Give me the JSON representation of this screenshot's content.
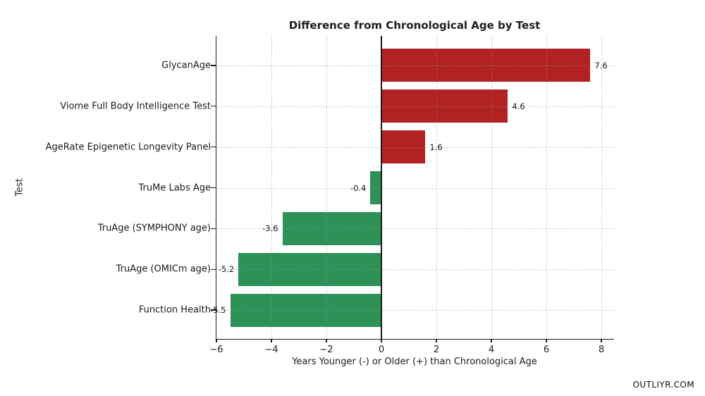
{
  "chart_data": {
    "type": "bar",
    "orientation": "horizontal",
    "title": "Difference from Chronological Age by Test",
    "xlabel": "Years Younger (-) or Older (+) than Chronological Age",
    "ylabel": "Test",
    "categories": [
      "GlycanAge",
      "Viome Full Body Intelligence Test",
      "AgeRate Epigenetic Longevity Panel",
      "TruMe Labs Age",
      "TruAge (SYMPHONY age)",
      "TruAge (OMICm age)",
      "Function Health"
    ],
    "values": [
      7.6,
      4.6,
      1.6,
      -0.4,
      -3.6,
      -5.2,
      -5.5
    ],
    "value_labels": [
      "7.6",
      "4.6",
      "1.6",
      "-0.4",
      "-3.6",
      "-5.2",
      "-5.5"
    ],
    "xlim": [
      -6,
      8.46
    ],
    "xticks": [
      -6,
      -4,
      -2,
      0,
      2,
      4,
      6,
      8
    ],
    "xtick_labels": [
      "−6",
      "−4",
      "−2",
      "0",
      "2",
      "4",
      "6",
      "8"
    ],
    "grid": true,
    "legend": null,
    "colors": {
      "positive_bar": "#b22222",
      "negative_bar": "#2e9158",
      "axis": "#1a1a1a",
      "grid": "#c8c8c8",
      "text": "#1c1c1c"
    }
  },
  "watermark": "OUTLIYR.COM"
}
